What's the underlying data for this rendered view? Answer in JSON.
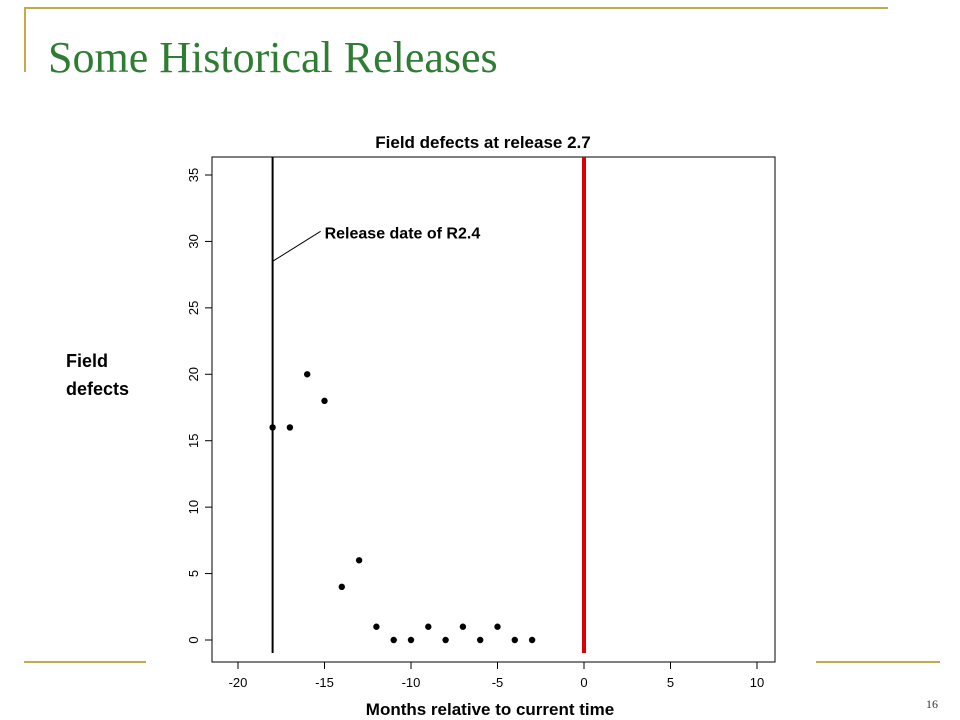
{
  "slide": {
    "title": "Some Historical Releases",
    "page_number": "16",
    "accent_color": "#c9a84a",
    "title_color": "#2e7d32"
  },
  "chart_data": {
    "type": "scatter",
    "title": "Field defects at release 2.7",
    "xlabel": "Months relative to current time",
    "ylabel": "Field defects",
    "xlim": [
      -20,
      10
    ],
    "ylim": [
      0,
      35
    ],
    "x_ticks": [
      "-20",
      "-15",
      "-10",
      "-5",
      "0",
      "5",
      "10"
    ],
    "y_ticks": [
      "0",
      "5",
      "10",
      "15",
      "20",
      "25",
      "30",
      "35"
    ],
    "points": [
      {
        "x": -18,
        "y": 16
      },
      {
        "x": -17,
        "y": 16
      },
      {
        "x": -16,
        "y": 20
      },
      {
        "x": -15,
        "y": 18
      },
      {
        "x": -14,
        "y": 4
      },
      {
        "x": -13,
        "y": 6
      },
      {
        "x": -12,
        "y": 1
      },
      {
        "x": -11,
        "y": 0
      },
      {
        "x": -10,
        "y": 0
      },
      {
        "x": -9,
        "y": 1
      },
      {
        "x": -8,
        "y": 0
      },
      {
        "x": -7,
        "y": 1
      },
      {
        "x": -6,
        "y": 0
      },
      {
        "x": -5,
        "y": 1
      },
      {
        "x": -4,
        "y": 0
      },
      {
        "x": -3,
        "y": 0
      }
    ],
    "vertical_lines": [
      {
        "x": -18,
        "color": "#000000"
      },
      {
        "x": 0,
        "color": "#dd0000"
      }
    ],
    "annotation": {
      "text": "Release date of R2.4",
      "x": -18,
      "y": 28.5
    },
    "grid": false,
    "legend": "none"
  }
}
